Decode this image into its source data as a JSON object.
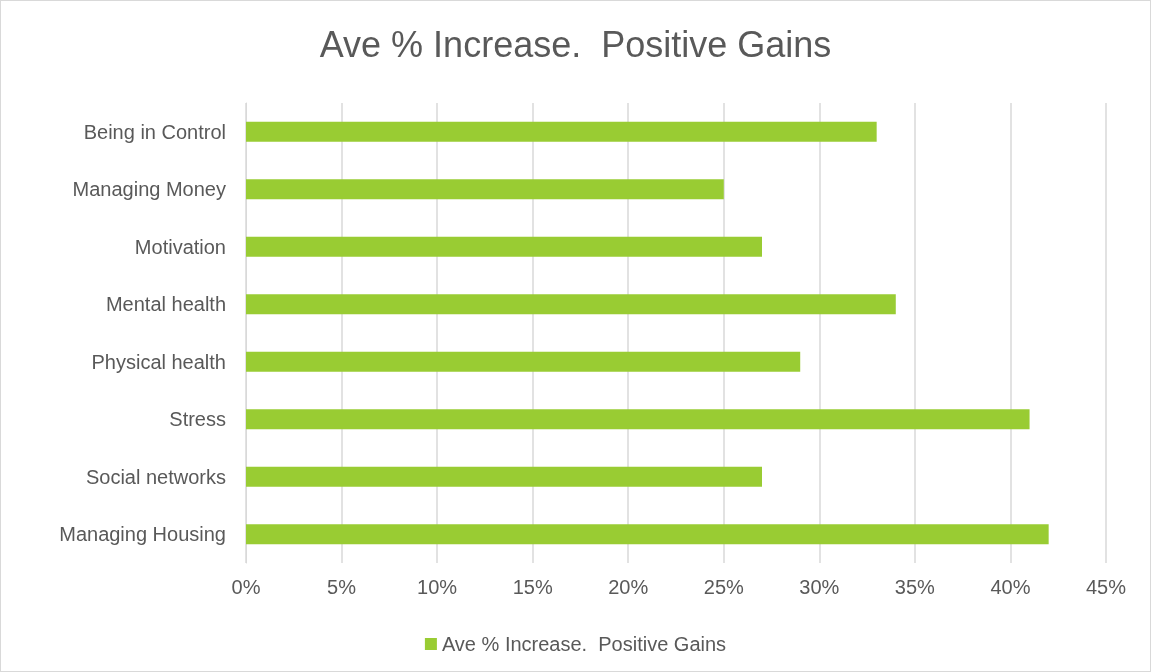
{
  "chart_data": {
    "type": "bar",
    "orientation": "horizontal",
    "title": "Ave % Increase.  Positive Gains",
    "categories": [
      "Being in Control",
      "Managing Money",
      "Motivation",
      "Mental health",
      "Physical health",
      "Stress",
      "Social networks",
      "Managing Housing"
    ],
    "series": [
      {
        "name": "Ave % Increase.  Positive Gains",
        "color": "#99cc33",
        "values": [
          33,
          25,
          27,
          34,
          29,
          41,
          27,
          42
        ]
      }
    ],
    "xlim": [
      0,
      45
    ],
    "xticks": [
      {
        "value": 0,
        "label": "0%"
      },
      {
        "value": 5,
        "label": "5%"
      },
      {
        "value": 10,
        "label": "10%"
      },
      {
        "value": 15,
        "label": "15%"
      },
      {
        "value": 20,
        "label": "20%"
      },
      {
        "value": 25,
        "label": "25%"
      },
      {
        "value": 30,
        "label": "30%"
      },
      {
        "value": 35,
        "label": "35%"
      },
      {
        "value": 40,
        "label": "40%"
      },
      {
        "value": 45,
        "label": "45%"
      }
    ],
    "grid": "x",
    "legend": "bottom"
  }
}
